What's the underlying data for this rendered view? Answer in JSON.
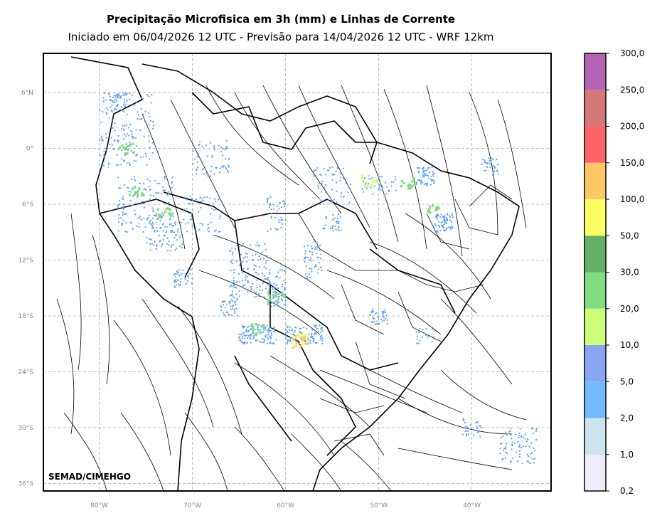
{
  "header": {
    "title": "Precipitação Microfisica em 3h (mm) e Linhas de Corrente",
    "subtitle": "Iniciado em 06/04/2026 12 UTC - Previsão para 14/04/2026 12 UTC - WRF 12km"
  },
  "map": {
    "lon_range": [
      -86,
      -31.5
    ],
    "lat_range": [
      -36.8,
      10.2
    ],
    "lat_labels": [
      "6°N",
      "0°",
      "6°S",
      "12°S",
      "18°S",
      "24°S",
      "30°S",
      "36°S"
    ],
    "lat_values": [
      6,
      0,
      -6,
      -12,
      -18,
      -24,
      -30,
      -36
    ],
    "lon_labels": [
      "80°W",
      "70°W",
      "60°W",
      "50°W",
      "40°W"
    ],
    "lon_values": [
      -80,
      -70,
      -60,
      -50,
      -40
    ],
    "credit": "SEMAD/CIMEHGO"
  },
  "colorbar": {
    "levels": [
      "0,2",
      "1,0",
      "2,0",
      "5,0",
      "10,0",
      "20,0",
      "30,0",
      "50,0",
      "100,0",
      "150,0",
      "200,0",
      "250,0",
      "300,0"
    ],
    "colors": [
      "#eeeefa",
      "#cce4ee",
      "#74baff",
      "#8aa6f0",
      "#cdff7a",
      "#82dc82",
      "#64b064",
      "#ffff64",
      "#ffc864",
      "#ff6464",
      "#d47878",
      "#b464b4"
    ]
  }
}
